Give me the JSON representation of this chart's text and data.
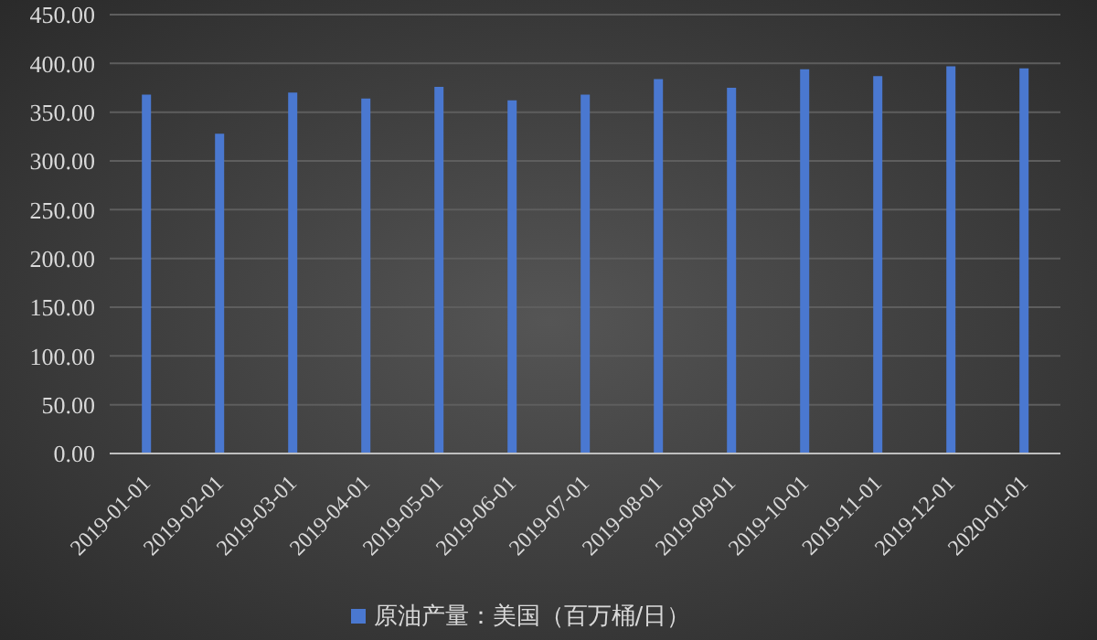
{
  "chart_data": {
    "type": "bar",
    "categories": [
      "2019-01-01",
      "2019-02-01",
      "2019-03-01",
      "2019-04-01",
      "2019-05-01",
      "2019-06-01",
      "2019-07-01",
      "2019-08-01",
      "2019-09-01",
      "2019-10-01",
      "2019-11-01",
      "2019-12-01",
      "2020-01-01"
    ],
    "series": [
      {
        "name": "原油产量：美国（百万桶/日）",
        "color": "#4a78d0",
        "values": [
          368,
          328,
          370,
          364,
          376,
          362,
          368,
          384,
          375,
          394,
          387,
          397,
          395
        ]
      }
    ],
    "ylim": [
      0,
      450
    ],
    "yticks": [
      {
        "value": 0,
        "label": "0.00"
      },
      {
        "value": 50,
        "label": "50.00"
      },
      {
        "value": 100,
        "label": "100.00"
      },
      {
        "value": 150,
        "label": "150.00"
      },
      {
        "value": 200,
        "label": "200.00"
      },
      {
        "value": 250,
        "label": "250.00"
      },
      {
        "value": 300,
        "label": "300.00"
      },
      {
        "value": 350,
        "label": "350.00"
      },
      {
        "value": 400,
        "label": "400.00"
      },
      {
        "value": 450,
        "label": "450.00"
      }
    ],
    "grid": "y",
    "legend": "bottom"
  }
}
